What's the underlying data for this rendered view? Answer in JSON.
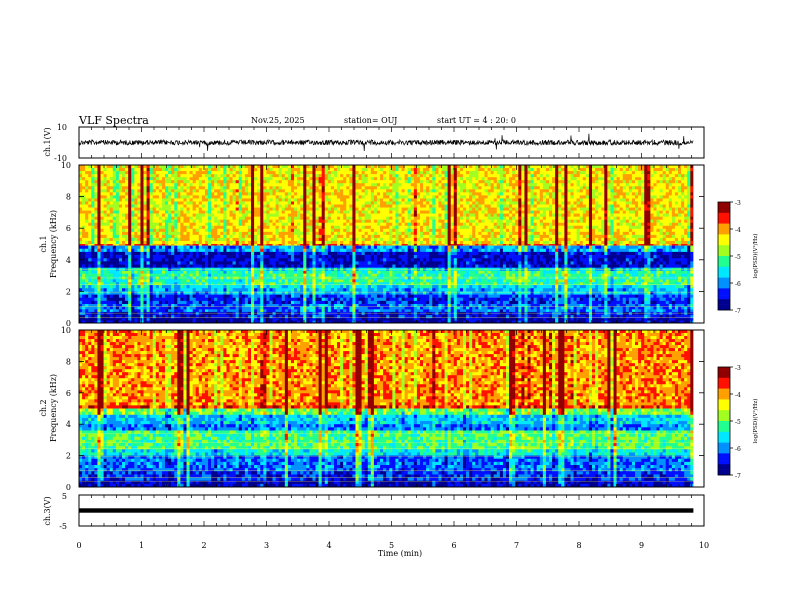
{
  "header": {
    "title": "VLF Spectra",
    "date": "Nov.25, 2025",
    "station": "station= OUJ",
    "start": "start  UT =   4 : 20: 0"
  },
  "colors": {
    "spectro_scale": [
      "#000090",
      "#0010ff",
      "#0090ff",
      "#00e8ff",
      "#20ff90",
      "#a0ff20",
      "#ffff00",
      "#ffa000",
      "#ff1000",
      "#900000"
    ],
    "trace": "#000000"
  },
  "chart_data": [
    {
      "type": "line",
      "name": "ch1-waveform",
      "ylabel": "ch.1(V)",
      "ylim": [
        -10,
        10
      ],
      "yticks": [
        "10",
        "-10"
      ],
      "xlim": [
        0,
        10
      ],
      "baseline": 0,
      "data_extent_min": 9.83
    },
    {
      "type": "heatmap",
      "name": "ch1-spectrogram",
      "ylabel": "ch.1\nFrequency  (kHz)",
      "ylim": [
        0,
        10
      ],
      "yticks": [
        "0",
        "2",
        "4",
        "6",
        "8",
        "10"
      ],
      "xlim": [
        0,
        10
      ],
      "data_extent_min": 9.83,
      "colorbar": {
        "label": "log(PSD)(V²/Hz)",
        "range": [
          -7,
          -3
        ],
        "ticks": [
          "-3",
          "-4",
          "-5",
          "-6",
          "-7"
        ]
      },
      "bands_khz": [
        {
          "from": 5.0,
          "to": 10.0,
          "level": 0.66
        },
        {
          "from": 4.9,
          "to": 5.0,
          "level": 0.78
        },
        {
          "from": 4.5,
          "to": 4.9,
          "level": 0.28
        },
        {
          "from": 3.5,
          "to": 4.5,
          "level": 0.1
        },
        {
          "from": 3.3,
          "to": 3.5,
          "level": 0.35
        },
        {
          "from": 2.4,
          "to": 3.3,
          "level": 0.44
        },
        {
          "from": 2.2,
          "to": 2.4,
          "level": 0.36
        },
        {
          "from": 1.8,
          "to": 2.2,
          "level": 0.3
        },
        {
          "from": 1.2,
          "to": 1.8,
          "level": 0.17
        },
        {
          "from": 0.7,
          "to": 1.2,
          "level": 0.22
        },
        {
          "from": 0.3,
          "to": 0.7,
          "level": 0.12
        },
        {
          "from": 0.0,
          "to": 0.3,
          "level": 0.05
        }
      ]
    },
    {
      "type": "heatmap",
      "name": "ch2-spectrogram",
      "ylabel": "ch.2\nFrequency  (kHz)",
      "ylim": [
        0,
        10
      ],
      "yticks": [
        "0",
        "2",
        "4",
        "6",
        "8",
        "10"
      ],
      "xlim": [
        0,
        10
      ],
      "data_extent_min": 9.83,
      "colorbar": {
        "label": "log(PSD)(V²/Hz)",
        "range": [
          -7,
          -3
        ],
        "ticks": [
          "-3",
          "-4",
          "-5",
          "-6",
          "-7"
        ]
      },
      "bands_khz": [
        {
          "from": 5.2,
          "to": 10.0,
          "level": 0.76
        },
        {
          "from": 5.0,
          "to": 5.2,
          "level": 0.86
        },
        {
          "from": 4.6,
          "to": 5.0,
          "level": 0.52
        },
        {
          "from": 4.0,
          "to": 4.6,
          "level": 0.32
        },
        {
          "from": 3.6,
          "to": 4.0,
          "level": 0.24
        },
        {
          "from": 2.4,
          "to": 3.6,
          "level": 0.48
        },
        {
          "from": 2.0,
          "to": 2.4,
          "level": 0.38
        },
        {
          "from": 1.0,
          "to": 2.0,
          "level": 0.22
        },
        {
          "from": 0.4,
          "to": 1.0,
          "level": 0.16
        },
        {
          "from": 0.0,
          "to": 0.4,
          "level": 0.08
        }
      ]
    },
    {
      "type": "line",
      "name": "ch3-waveform",
      "ylabel": "ch.3(V)",
      "ylim": [
        -5,
        5
      ],
      "yticks": [
        "5",
        "-5"
      ],
      "xlim": [
        0,
        10
      ],
      "baseline": 0,
      "data_extent_min": 9.83
    }
  ],
  "xaxis": {
    "label": "Time  (min)",
    "ticks": [
      "0",
      "1",
      "2",
      "3",
      "4",
      "5",
      "6",
      "7",
      "8",
      "9",
      "10"
    ]
  }
}
